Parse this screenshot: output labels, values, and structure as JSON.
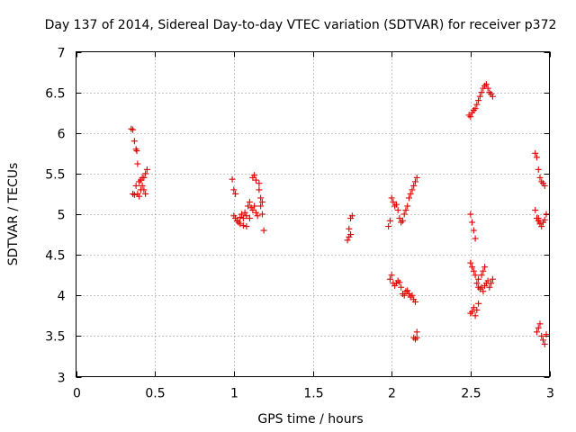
{
  "chart_data": {
    "type": "scatter",
    "title": "Day 137 of 2014, Sidereal Day-to-day VTEC variation (SDTVAR) for receiver p372",
    "xlabel": "GPS time / hours",
    "ylabel": "SDTVAR / TECUs",
    "xlim": [
      0,
      3
    ],
    "ylim": [
      3,
      7
    ],
    "xticks": [
      0,
      0.5,
      1,
      1.5,
      2,
      2.5,
      3
    ],
    "xtick_labels": [
      "0",
      "0.5",
      "1",
      "1.5",
      "2",
      "2.5",
      "3"
    ],
    "yticks": [
      3,
      3.5,
      4,
      4.5,
      5,
      5.5,
      6,
      6.5,
      7
    ],
    "ytick_labels": [
      "3",
      "3.5",
      "4",
      "4.5",
      "5",
      "5.5",
      "6",
      "6.5",
      "7"
    ],
    "grid": true,
    "marker": "+",
    "color": "#e00000",
    "series": [
      {
        "name": "SDTVAR",
        "x": [
          0.35,
          0.36,
          0.37,
          0.38,
          0.385,
          0.39,
          0.39,
          0.4,
          0.41,
          0.42,
          0.43,
          0.44,
          0.45,
          0.36,
          0.37,
          0.38,
          0.4,
          0.41,
          0.42,
          0.43,
          0.44,
          0.99,
          1.0,
          1.01,
          1.0,
          1.01,
          1.02,
          1.03,
          1.04,
          1.05,
          1.06,
          1.07,
          1.08,
          1.09,
          1.1,
          1.11,
          1.12,
          1.13,
          1.14,
          1.15,
          1.16,
          1.17,
          1.18,
          1.19,
          1.12,
          1.13,
          1.14,
          1.16,
          1.17,
          1.18,
          1.04,
          1.06,
          1.08,
          1.1,
          1.72,
          1.73,
          1.74,
          1.75,
          1.73,
          1.74,
          1.98,
          1.99,
          2.0,
          2.01,
          2.02,
          2.03,
          2.04,
          2.05,
          2.06,
          2.07,
          2.08,
          2.09,
          2.1,
          2.11,
          2.12,
          2.13,
          2.14,
          2.15,
          2.16,
          1.99,
          2.0,
          2.01,
          2.02,
          2.03,
          2.04,
          2.05,
          2.06,
          2.07,
          2.08,
          2.09,
          2.1,
          2.11,
          2.12,
          2.13,
          2.14,
          2.15,
          2.16,
          2.14,
          2.15,
          2.16,
          2.49,
          2.5,
          2.51,
          2.52,
          2.53,
          2.54,
          2.55,
          2.56,
          2.57,
          2.58,
          2.59,
          2.6,
          2.61,
          2.62,
          2.63,
          2.64,
          2.5,
          2.51,
          2.52,
          2.53,
          2.54,
          2.55,
          2.56,
          2.57,
          2.58,
          2.59,
          2.6,
          2.61,
          2.62,
          2.63,
          2.64,
          2.5,
          2.51,
          2.52,
          2.53,
          2.55,
          2.57,
          2.58,
          2.59,
          2.5,
          2.51,
          2.52,
          2.53,
          2.54,
          2.55,
          2.91,
          2.92,
          2.93,
          2.94,
          2.95,
          2.96,
          2.97,
          2.98,
          2.91,
          2.92,
          2.93,
          2.94,
          2.95,
          2.96,
          2.97,
          2.92,
          2.93,
          2.94,
          2.95,
          2.96,
          2.97,
          2.98,
          2.93,
          2.94
        ],
        "y": [
          6.05,
          6.04,
          5.9,
          5.8,
          5.78,
          5.62,
          5.25,
          5.22,
          5.3,
          5.35,
          5.45,
          5.5,
          5.55,
          5.25,
          5.24,
          5.35,
          5.4,
          5.42,
          5.45,
          5.3,
          5.25,
          5.43,
          5.3,
          5.25,
          4.98,
          4.95,
          4.92,
          4.9,
          4.96,
          5.0,
          4.95,
          5.02,
          4.98,
          5.1,
          5.15,
          5.08,
          5.05,
          5.1,
          5.02,
          4.98,
          5.3,
          5.2,
          5.15,
          4.8,
          5.45,
          5.48,
          5.42,
          5.38,
          5.1,
          5.0,
          4.88,
          4.86,
          4.85,
          4.95,
          4.68,
          4.72,
          4.95,
          4.98,
          4.82,
          4.75,
          4.85,
          4.92,
          5.2,
          5.15,
          5.1,
          5.12,
          5.05,
          4.95,
          4.9,
          4.92,
          5.0,
          5.05,
          5.1,
          5.2,
          5.25,
          5.3,
          5.35,
          5.4,
          5.45,
          4.2,
          4.25,
          4.15,
          4.12,
          4.15,
          4.18,
          4.16,
          4.1,
          4.02,
          4.0,
          4.05,
          4.06,
          4.02,
          3.98,
          4.0,
          3.95,
          3.92,
          3.55,
          3.48,
          3.46,
          3.48,
          6.22,
          6.2,
          6.25,
          6.28,
          6.3,
          6.35,
          6.4,
          6.45,
          6.5,
          6.55,
          6.58,
          6.6,
          6.55,
          6.5,
          6.48,
          6.45,
          4.4,
          4.35,
          4.3,
          4.25,
          4.15,
          4.1,
          4.08,
          4.1,
          4.05,
          4.12,
          4.15,
          4.18,
          4.1,
          4.15,
          4.2,
          5.0,
          4.9,
          4.8,
          4.7,
          4.2,
          4.25,
          4.3,
          4.35,
          3.78,
          3.8,
          3.85,
          3.75,
          3.82,
          3.9,
          5.75,
          5.7,
          5.55,
          5.45,
          5.4,
          5.38,
          5.35,
          5.0,
          5.05,
          4.95,
          4.92,
          4.88,
          4.85,
          4.9,
          4.93,
          3.55,
          3.6,
          3.65,
          3.5,
          3.45,
          3.4,
          3.52,
          4.95,
          4.9
        ]
      }
    ]
  }
}
